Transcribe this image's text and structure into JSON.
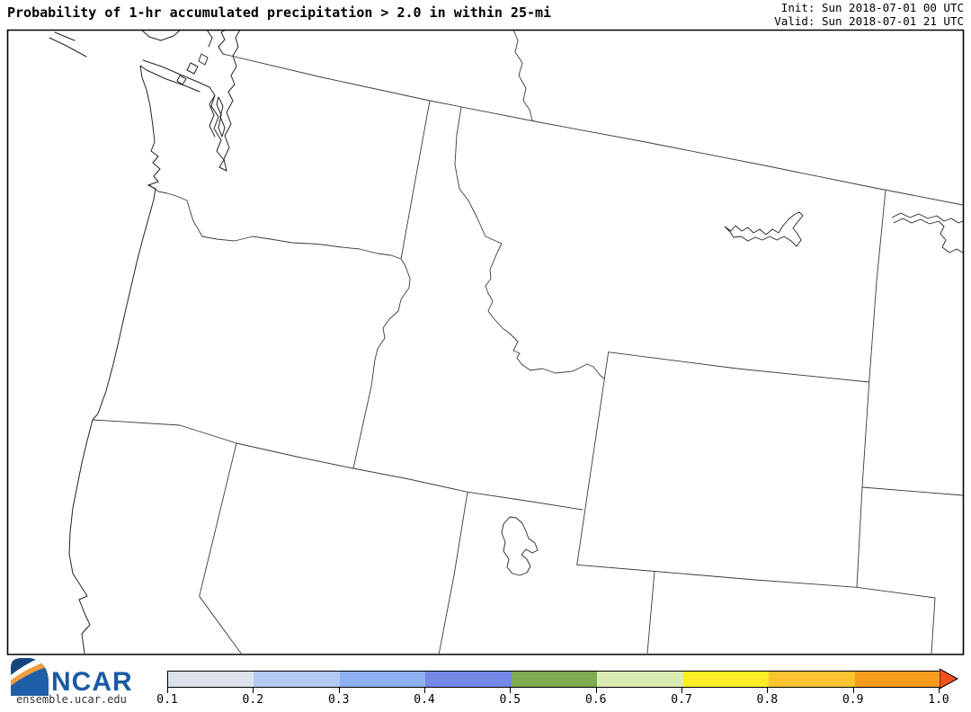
{
  "header": {
    "title": "Probability of 1-hr accumulated precipitation > 2.0 in within 25-mi",
    "init": "Init: Sun 2018-07-01 00 UTC",
    "valid": "Valid: Sun 2018-07-01 21 UTC"
  },
  "colorbar": {
    "ticks": [
      "0.1",
      "0.2",
      "0.3",
      "0.4",
      "0.5",
      "0.6",
      "0.7",
      "0.8",
      "0.9",
      "1.0"
    ],
    "segment_colors": [
      "#dde2e9",
      "#b3c8f2",
      "#8eb0f0",
      "#7589e9",
      "#7fab51",
      "#dbecb3",
      "#fbee24",
      "#fbc42e",
      "#f89c1e"
    ],
    "arrow_color": "#ef5120",
    "min": 0.1,
    "max": 1.0
  },
  "branding": {
    "logo": "NCAR",
    "site": "ensemble.ucar.edu"
  }
}
